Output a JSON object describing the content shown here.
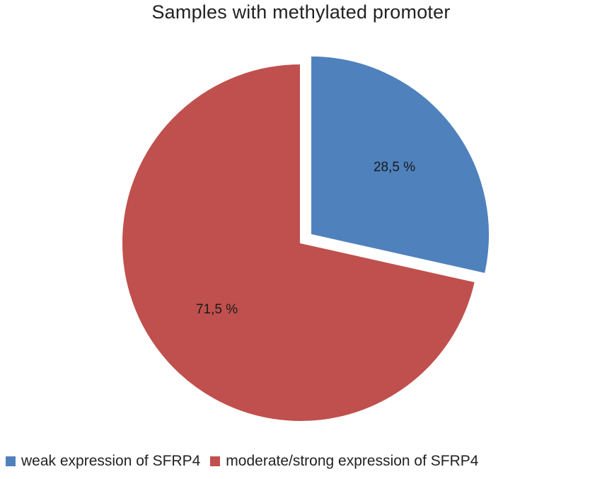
{
  "chart_data": {
    "type": "pie",
    "title": "Samples with methylated promoter",
    "slices": [
      {
        "name": "weak expression of SFRP4",
        "value": 28.5,
        "label": "28,5 %",
        "color": "#4F81BD",
        "exploded": true
      },
      {
        "name": "moderate/strong expression of SFRP4",
        "value": 71.5,
        "label": "71,5 %",
        "color": "#C0504D",
        "exploded": false
      }
    ],
    "legend_position": "bottom"
  }
}
